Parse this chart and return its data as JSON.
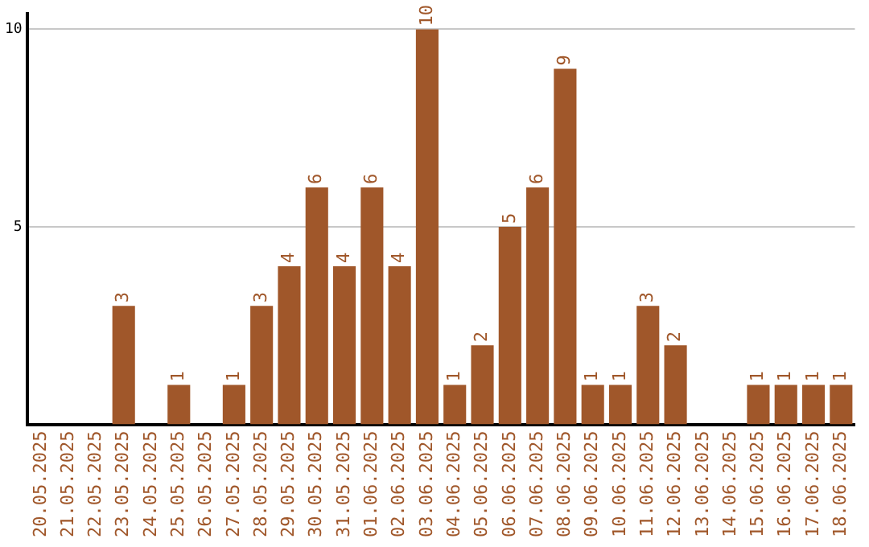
{
  "chart_data": {
    "type": "bar",
    "categories": [
      "20.05.2025",
      "21.05.2025",
      "22.05.2025",
      "23.05.2025",
      "24.05.2025",
      "25.05.2025",
      "26.05.2025",
      "27.05.2025",
      "28.05.2025",
      "29.05.2025",
      "30.05.2025",
      "31.05.2025",
      "01.06.2025",
      "02.06.2025",
      "03.06.2025",
      "04.06.2025",
      "05.06.2025",
      "06.06.2025",
      "07.06.2025",
      "08.06.2025",
      "09.06.2025",
      "10.06.2025",
      "11.06.2025",
      "12.06.2025",
      "13.06.2025",
      "14.06.2025",
      "15.06.2025",
      "16.06.2025",
      "17.06.2025",
      "18.06.2025"
    ],
    "values": [
      null,
      null,
      null,
      3,
      null,
      1,
      null,
      1,
      3,
      4,
      6,
      4,
      6,
      4,
      10,
      1,
      2,
      5,
      6,
      9,
      1,
      1,
      3,
      2,
      null,
      null,
      1,
      1,
      1,
      1
    ],
    "color": "#a0572a",
    "ylim": [
      0,
      10.4
    ],
    "yticks": [
      5,
      10
    ],
    "grid": "y",
    "legend": false,
    "data_labels": true
  }
}
